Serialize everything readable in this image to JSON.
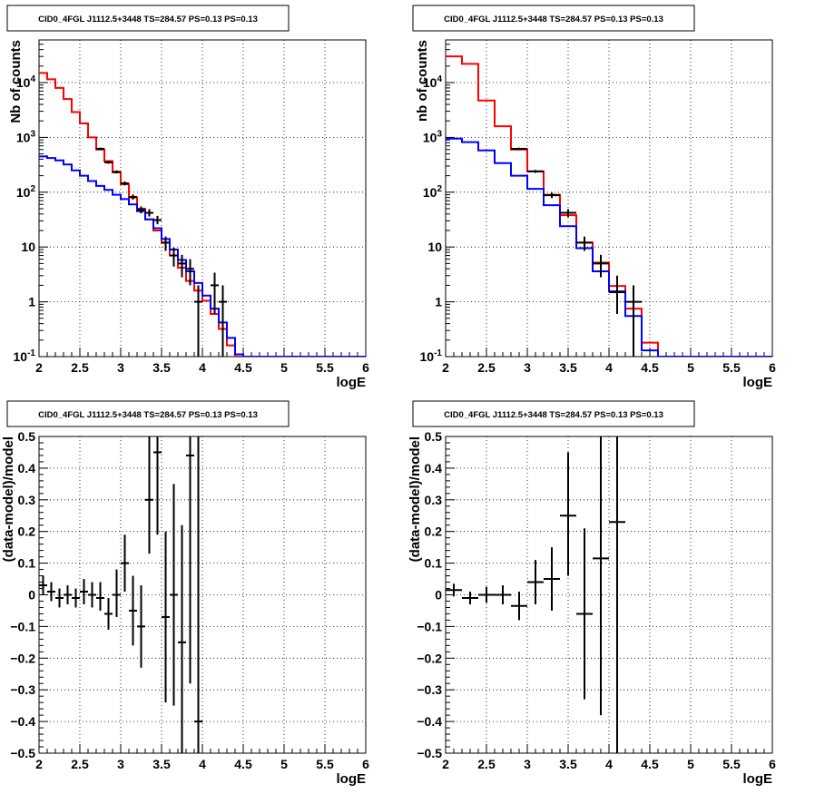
{
  "chart_data": [
    {
      "type": "line",
      "title": "CID0_4FGL J1112.5+3448 TS=284.57 PS=0.13 PS=0.13",
      "xlabel": "logE",
      "ylabel": "Nb of counts",
      "xlim": [
        2,
        6
      ],
      "ylim": [
        0.1,
        60000
      ],
      "yscale": "log",
      "grid": true,
      "xticks": [
        "2",
        "2.5",
        "3",
        "3.5",
        "4",
        "4.5",
        "5",
        "5.5",
        "6"
      ],
      "yticks": [
        {
          "value": 0.1,
          "label": "10^-1"
        },
        {
          "value": 1,
          "label": "1"
        },
        {
          "value": 10,
          "label": "10"
        },
        {
          "value": 100,
          "label": "10^2"
        },
        {
          "value": 1000,
          "label": "10^3"
        },
        {
          "value": 10000,
          "label": "10^4"
        }
      ],
      "series": [
        {
          "color": "#ff0000",
          "kind": "step",
          "edges": [
            2.0,
            2.1,
            2.2,
            2.3,
            2.4,
            2.5,
            2.6,
            2.7,
            2.8,
            2.9,
            3.0,
            3.1,
            3.2,
            3.3,
            3.4,
            3.5,
            3.6,
            3.7,
            3.8,
            3.9,
            4.0,
            4.1,
            4.2,
            4.3,
            4.4,
            4.5,
            4.6,
            4.7,
            4.8,
            4.9,
            5.0,
            5.1,
            5.2,
            5.3,
            5.4,
            5.5,
            5.6,
            5.7,
            5.8,
            5.9,
            6.0
          ],
          "values": [
            15000,
            11500,
            8000,
            5000,
            2900,
            1800,
            1000,
            600,
            370,
            230,
            140,
            80,
            50,
            32,
            20,
            12,
            7,
            4.2,
            2.4,
            1.6,
            1.05,
            0.6,
            0.32,
            0.16,
            0.1,
            0.1,
            0.1,
            0.1,
            0.1,
            0.1,
            0.1,
            0.1,
            0.1,
            0.1,
            0.1,
            0.1,
            0.1,
            0.1,
            0.1,
            0.1
          ]
        },
        {
          "color": "#0000ff",
          "kind": "step",
          "edges": [
            2.0,
            2.1,
            2.2,
            2.3,
            2.4,
            2.5,
            2.6,
            2.7,
            2.8,
            2.9,
            3.0,
            3.1,
            3.2,
            3.3,
            3.4,
            3.5,
            3.6,
            3.7,
            3.8,
            3.9,
            4.0,
            4.1,
            4.2,
            4.3,
            4.4,
            4.5,
            4.6,
            4.7,
            4.8,
            4.9,
            5.0,
            5.1,
            5.2,
            5.3,
            5.4,
            5.5,
            5.6,
            5.7,
            5.8,
            5.9,
            6.0
          ],
          "values": [
            450,
            420,
            380,
            320,
            250,
            200,
            160,
            130,
            110,
            90,
            75,
            60,
            45,
            32,
            22,
            14,
            9,
            5.8,
            3.6,
            2.2,
            1.3,
            0.75,
            0.42,
            0.22,
            0.11,
            0.1,
            0.1,
            0.1,
            0.1,
            0.1,
            0.1,
            0.1,
            0.1,
            0.1,
            0.1,
            0.1,
            0.1,
            0.1,
            0.1,
            0.1
          ]
        }
      ],
      "points": [
        {
          "x": 2.75,
          "y": 620,
          "xerr": 0.05,
          "lo": 590,
          "hi": 650
        },
        {
          "x": 2.85,
          "y": 350,
          "xerr": 0.05,
          "lo": 330,
          "hi": 370
        },
        {
          "x": 2.95,
          "y": 235,
          "xerr": 0.05,
          "lo": 220,
          "hi": 250
        },
        {
          "x": 3.05,
          "y": 145,
          "xerr": 0.05,
          "lo": 133,
          "hi": 157
        },
        {
          "x": 3.15,
          "y": 82,
          "xerr": 0.05,
          "lo": 73,
          "hi": 91
        },
        {
          "x": 3.25,
          "y": 48,
          "xerr": 0.05,
          "lo": 41,
          "hi": 55
        },
        {
          "x": 3.35,
          "y": 42,
          "xerr": 0.05,
          "lo": 36,
          "hi": 49
        },
        {
          "x": 3.45,
          "y": 31,
          "xerr": 0.05,
          "lo": 26,
          "hi": 37
        },
        {
          "x": 3.55,
          "y": 12,
          "xerr": 0.05,
          "lo": 8.5,
          "hi": 15.5
        },
        {
          "x": 3.65,
          "y": 7,
          "xerr": 0.05,
          "lo": 4.4,
          "hi": 9.7
        },
        {
          "x": 3.75,
          "y": 5,
          "xerr": 0.05,
          "lo": 2.8,
          "hi": 7.2
        },
        {
          "x": 3.85,
          "y": 4,
          "xerr": 0.05,
          "lo": 2.0,
          "hi": 6.0
        },
        {
          "x": 3.95,
          "y": 1,
          "xerr": 0.05,
          "lo": 0.1,
          "hi": 2.0
        },
        {
          "x": 4.15,
          "y": 2,
          "xerr": 0.05,
          "lo": 0.6,
          "hi": 3.4
        },
        {
          "x": 4.25,
          "y": 1,
          "xerr": 0.05,
          "lo": 0.1,
          "hi": 2.0
        }
      ]
    },
    {
      "type": "line",
      "title": "CID0_4FGL J1112.5+3448 TS=284.57 PS=0.13 PS=0.13",
      "xlabel": "logE",
      "ylabel": "nb of counts",
      "xlim": [
        2,
        6
      ],
      "ylim": [
        0.1,
        60000
      ],
      "yscale": "log",
      "grid": true,
      "xticks": [
        "2",
        "2.5",
        "3",
        "3.5",
        "4",
        "4.5",
        "5",
        "5.5",
        "6"
      ],
      "yticks": [
        {
          "value": 0.1,
          "label": "10^-1"
        },
        {
          "value": 1,
          "label": "1"
        },
        {
          "value": 10,
          "label": "10"
        },
        {
          "value": 100,
          "label": "10^2"
        },
        {
          "value": 1000,
          "label": "10^3"
        },
        {
          "value": 10000,
          "label": "10^4"
        }
      ],
      "series": [
        {
          "color": "#ff0000",
          "kind": "step",
          "edges": [
            2.0,
            2.2,
            2.4,
            2.6,
            2.8,
            3.0,
            3.2,
            3.4,
            3.6,
            3.8,
            4.0,
            4.2,
            4.4,
            4.6,
            4.8,
            5.0,
            5.2,
            5.4,
            5.6,
            5.8,
            6.0
          ],
          "values": [
            30000,
            22000,
            4700,
            1600,
            600,
            240,
            90,
            38,
            12,
            5.2,
            1.95,
            0.75,
            0.18,
            0.1,
            0.1,
            0.1,
            0.1,
            0.1,
            0.1,
            0.1
          ]
        },
        {
          "color": "#0000ff",
          "kind": "step",
          "edges": [
            2.0,
            2.2,
            2.4,
            2.6,
            2.8,
            3.0,
            3.2,
            3.4,
            3.6,
            3.8,
            4.0,
            4.2,
            4.4,
            4.6,
            4.8,
            5.0,
            5.2,
            5.4,
            5.6,
            5.8,
            6.0
          ],
          "values": [
            950,
            820,
            580,
            340,
            200,
            115,
            58,
            24,
            9.5,
            3.6,
            1.55,
            0.55,
            0.13,
            0.1,
            0.1,
            0.1,
            0.1,
            0.1,
            0.1,
            0.1
          ]
        }
      ],
      "points": [
        {
          "x": 2.9,
          "y": 620,
          "xerr": 0.1,
          "lo": 590,
          "hi": 650
        },
        {
          "x": 3.1,
          "y": 240,
          "xerr": 0.1,
          "lo": 225,
          "hi": 255
        },
        {
          "x": 3.3,
          "y": 88,
          "xerr": 0.1,
          "lo": 78,
          "hi": 98
        },
        {
          "x": 3.5,
          "y": 42,
          "xerr": 0.1,
          "lo": 35,
          "hi": 49
        },
        {
          "x": 3.7,
          "y": 12,
          "xerr": 0.1,
          "lo": 8.5,
          "hi": 15.5
        },
        {
          "x": 3.9,
          "y": 5,
          "xerr": 0.1,
          "lo": 2.8,
          "hi": 7.2
        },
        {
          "x": 4.1,
          "y": 1.5,
          "xerr": 0.1,
          "lo": 0.6,
          "hi": 3.0
        },
        {
          "x": 4.3,
          "y": 1,
          "xerr": 0.1,
          "lo": 0.1,
          "hi": 2.0
        }
      ]
    },
    {
      "type": "scatter",
      "title": "CID0_4FGL J1112.5+3448 TS=284.57 PS=0.13 PS=0.13",
      "xlabel": "logE",
      "ylabel": "(data-model)/model",
      "xlim": [
        2,
        6
      ],
      "ylim": [
        -0.5,
        0.5
      ],
      "grid": true,
      "xticks": [
        "2",
        "2.5",
        "3",
        "3.5",
        "4",
        "4.5",
        "5",
        "5.5",
        "6"
      ],
      "yticks": [
        {
          "value": -0.5,
          "label": "−0.5"
        },
        {
          "value": -0.4,
          "label": "−0.4"
        },
        {
          "value": -0.3,
          "label": "−0.3"
        },
        {
          "value": -0.2,
          "label": "−0.2"
        },
        {
          "value": -0.1,
          "label": "−0.1"
        },
        {
          "value": 0,
          "label": "0"
        },
        {
          "value": 0.1,
          "label": "0.1"
        },
        {
          "value": 0.2,
          "label": "0.2"
        },
        {
          "value": 0.3,
          "label": "0.3"
        },
        {
          "value": 0.4,
          "label": "0.4"
        },
        {
          "value": 0.5,
          "label": "0.5"
        }
      ],
      "points": [
        {
          "x": 2.05,
          "y": 0.03,
          "xerr": 0.05,
          "lo": 0.0,
          "hi": 0.06
        },
        {
          "x": 2.15,
          "y": 0.01,
          "xerr": 0.05,
          "lo": -0.02,
          "hi": 0.04
        },
        {
          "x": 2.25,
          "y": -0.01,
          "xerr": 0.05,
          "lo": -0.04,
          "hi": 0.02
        },
        {
          "x": 2.35,
          "y": 0.0,
          "xerr": 0.05,
          "lo": -0.03,
          "hi": 0.03
        },
        {
          "x": 2.45,
          "y": -0.01,
          "xerr": 0.05,
          "lo": -0.04,
          "hi": 0.02
        },
        {
          "x": 2.55,
          "y": 0.01,
          "xerr": 0.05,
          "lo": -0.03,
          "hi": 0.05
        },
        {
          "x": 2.65,
          "y": 0.0,
          "xerr": 0.05,
          "lo": -0.04,
          "hi": 0.04
        },
        {
          "x": 2.75,
          "y": -0.01,
          "xerr": 0.05,
          "lo": -0.05,
          "hi": 0.04
        },
        {
          "x": 2.85,
          "y": -0.06,
          "xerr": 0.05,
          "lo": -0.11,
          "hi": -0.01
        },
        {
          "x": 2.95,
          "y": 0.0,
          "xerr": 0.05,
          "lo": -0.07,
          "hi": 0.08
        },
        {
          "x": 3.05,
          "y": 0.1,
          "xerr": 0.05,
          "lo": 0.01,
          "hi": 0.19
        },
        {
          "x": 3.15,
          "y": -0.05,
          "xerr": 0.05,
          "lo": -0.16,
          "hi": 0.06
        },
        {
          "x": 3.25,
          "y": -0.1,
          "xerr": 0.05,
          "lo": -0.23,
          "hi": 0.03
        },
        {
          "x": 3.35,
          "y": 0.3,
          "xerr": 0.05,
          "lo": 0.13,
          "hi": 0.5
        },
        {
          "x": 3.45,
          "y": 0.45,
          "xerr": 0.05,
          "lo": 0.19,
          "hi": 0.5
        },
        {
          "x": 3.55,
          "y": -0.07,
          "xerr": 0.05,
          "lo": -0.34,
          "hi": 0.2
        },
        {
          "x": 3.65,
          "y": 0.0,
          "xerr": 0.05,
          "lo": -0.35,
          "hi": 0.35
        },
        {
          "x": 3.75,
          "y": -0.15,
          "xerr": 0.05,
          "lo": -0.5,
          "hi": 0.22
        },
        {
          "x": 3.85,
          "y": 0.44,
          "xerr": 0.05,
          "lo": -0.28,
          "hi": 0.5
        },
        {
          "x": 3.95,
          "y": -0.4,
          "xerr": 0.05,
          "lo": -0.5,
          "hi": 0.5
        }
      ]
    },
    {
      "type": "scatter",
      "title": "CID0_4FGL J1112.5+3448 TS=284.57 PS=0.13 PS=0.13",
      "xlabel": "logE",
      "ylabel": "(data-model)/model",
      "xlim": [
        2,
        6
      ],
      "ylim": [
        -0.5,
        0.5
      ],
      "grid": true,
      "xticks": [
        "2",
        "2.5",
        "3",
        "3.5",
        "4",
        "4.5",
        "5",
        "5.5",
        "6"
      ],
      "yticks": [
        {
          "value": -0.5,
          "label": "−0.5"
        },
        {
          "value": -0.4,
          "label": "−0.4"
        },
        {
          "value": -0.3,
          "label": "−0.3"
        },
        {
          "value": -0.2,
          "label": "−0.2"
        },
        {
          "value": -0.1,
          "label": "−0.1"
        },
        {
          "value": 0,
          "label": "0"
        },
        {
          "value": 0.1,
          "label": "0.1"
        },
        {
          "value": 0.2,
          "label": "0.2"
        },
        {
          "value": 0.3,
          "label": "0.3"
        },
        {
          "value": 0.4,
          "label": "0.4"
        },
        {
          "value": 0.5,
          "label": "0.5"
        }
      ],
      "points": [
        {
          "x": 2.1,
          "y": 0.015,
          "xerr": 0.1,
          "lo": -0.005,
          "hi": 0.035
        },
        {
          "x": 2.3,
          "y": -0.01,
          "xerr": 0.1,
          "lo": -0.03,
          "hi": 0.01
        },
        {
          "x": 2.5,
          "y": 0.0,
          "xerr": 0.1,
          "lo": -0.025,
          "hi": 0.025
        },
        {
          "x": 2.7,
          "y": 0.0,
          "xerr": 0.1,
          "lo": -0.03,
          "hi": 0.03
        },
        {
          "x": 2.9,
          "y": -0.035,
          "xerr": 0.1,
          "lo": -0.08,
          "hi": 0.01
        },
        {
          "x": 3.1,
          "y": 0.04,
          "xerr": 0.1,
          "lo": -0.03,
          "hi": 0.11
        },
        {
          "x": 3.3,
          "y": 0.05,
          "xerr": 0.1,
          "lo": -0.05,
          "hi": 0.15
        },
        {
          "x": 3.5,
          "y": 0.25,
          "xerr": 0.1,
          "lo": 0.06,
          "hi": 0.45
        },
        {
          "x": 3.7,
          "y": -0.06,
          "xerr": 0.1,
          "lo": -0.33,
          "hi": 0.21
        },
        {
          "x": 3.9,
          "y": 0.115,
          "xerr": 0.1,
          "lo": -0.38,
          "hi": 0.5
        },
        {
          "x": 4.1,
          "y": 0.23,
          "xerr": 0.1,
          "lo": -0.5,
          "hi": 0.5
        }
      ]
    }
  ]
}
